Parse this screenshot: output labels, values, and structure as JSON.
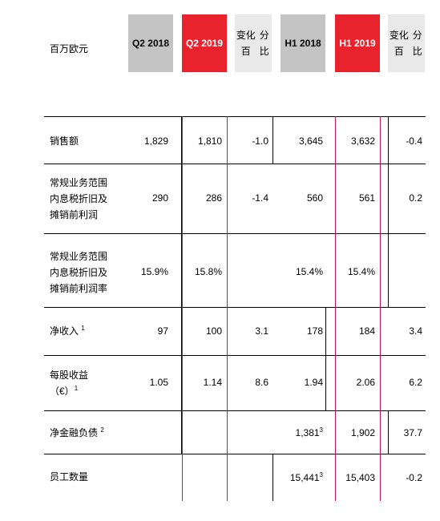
{
  "header": {
    "unit": "百万欧元",
    "columns": [
      {
        "label": "Q2 2018",
        "style": "gray"
      },
      {
        "label": "Q2 2019",
        "style": "red"
      },
      {
        "label_lines": [
          "变化百",
          "分比"
        ],
        "style": "light"
      },
      {
        "label": "H1 2018",
        "style": "gray"
      },
      {
        "label": "H1 2019",
        "style": "red"
      },
      {
        "label_lines": [
          "变化百",
          "分比"
        ],
        "style": "light"
      }
    ]
  },
  "rows": [
    {
      "label_lines": [
        "销售额"
      ],
      "note": "",
      "values": [
        "1,829",
        "1,810",
        "-1.0",
        "3,645",
        "3,632",
        "-0.4"
      ],
      "notes": [
        "",
        "",
        "",
        "",
        "",
        ""
      ]
    },
    {
      "label_lines": [
        "常规业务范围",
        "内息税折旧及",
        "摊销前利润"
      ],
      "note": "",
      "values": [
        "290",
        "286",
        "-1.4",
        "560",
        "561",
        "0.2"
      ],
      "notes": [
        "",
        "",
        "",
        "",
        "",
        ""
      ]
    },
    {
      "label_lines": [
        "常规业务范围",
        "内息税折旧及",
        "摊销前利润率"
      ],
      "note": "",
      "values": [
        "15.9%",
        "15.8%",
        "",
        "15.4%",
        "15.4%",
        ""
      ],
      "notes": [
        "",
        "",
        "",
        "",
        "",
        ""
      ]
    },
    {
      "label_lines": [
        "净收入"
      ],
      "note": "1",
      "values": [
        "97",
        "100",
        "3.1",
        "178",
        "184",
        "3.4"
      ],
      "notes": [
        "",
        "",
        "",
        "",
        "",
        ""
      ]
    },
    {
      "label_lines": [
        "每股收益",
        "（€）"
      ],
      "note": "1",
      "values": [
        "1.05",
        "1.14",
        "8.6",
        "1.94",
        "2.06",
        "6.2"
      ],
      "notes": [
        "",
        "",
        "",
        "",
        "",
        ""
      ]
    },
    {
      "label_lines": [
        "净金融负债"
      ],
      "note": "2",
      "values": [
        "",
        "",
        "",
        "1,381",
        "1,902",
        "37.7"
      ],
      "notes": [
        "",
        "",
        "",
        "3",
        "",
        ""
      ]
    },
    {
      "label_lines": [
        "员工数量"
      ],
      "note": "",
      "values": [
        "",
        "",
        "",
        "15,441",
        "15,403",
        "-0.2"
      ],
      "notes": [
        "",
        "",
        "",
        "3",
        "",
        ""
      ]
    }
  ]
}
